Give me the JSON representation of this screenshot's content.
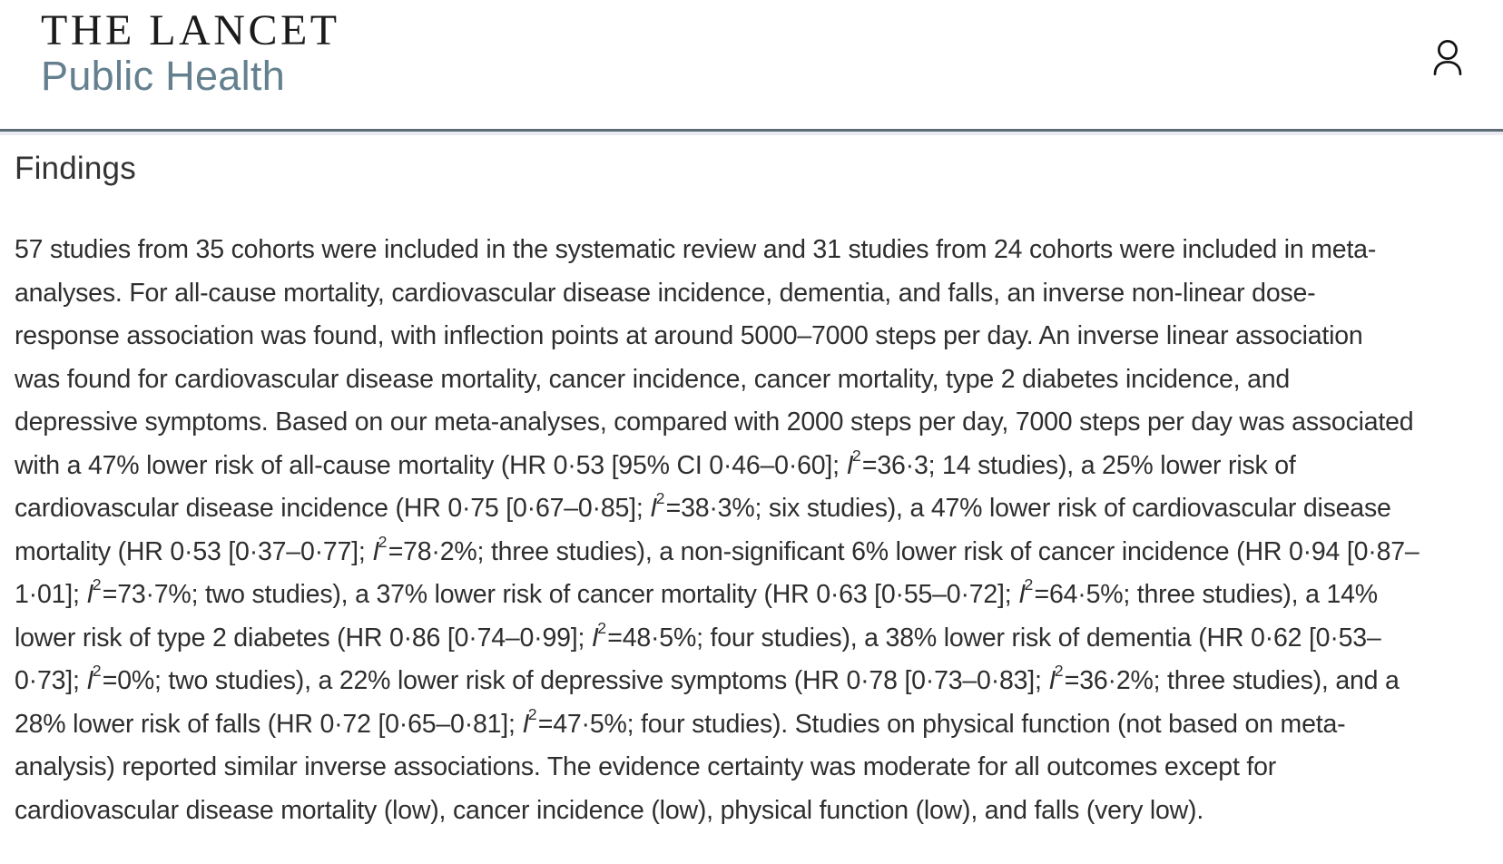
{
  "header": {
    "logo_title": "THE LANCET",
    "logo_subtitle": "Public Health",
    "account_icon": "person-outline"
  },
  "colors": {
    "logo-title-color": "#1b1b1b",
    "logo-subtitle-color": "#64808f",
    "divider-color": "#5c6b75",
    "divider-underline-color": "#e9eaf2",
    "heading-color": "#333333",
    "body-color": "#2e2e2e",
    "page-bg": "#ffffff"
  },
  "article": {
    "section_title": "Findings",
    "paragraph_lines": [
      "57 studies from 35 cohorts were included in the systematic review and 31 studies from 24 cohorts were included in meta-",
      "analyses. For all-cause mortality, cardiovascular disease incidence, dementia, and falls, an inverse non-linear dose-",
      "response association was found, with inflection points at around 5000–7000 steps per day. An inverse linear association",
      "was found for cardiovascular disease mortality, cancer incidence, cancer mortality, type 2 diabetes incidence, and",
      "depressive symptoms. Based on our meta-analyses, compared with 2000 steps per day, 7000 steps per day was associated",
      "with a 47% lower risk of all-cause mortality (HR 0·53 [95% CI 0·46–0·60]; I²=36·3; 14 studies), a 25% lower risk of",
      "cardiovascular disease incidence (HR 0·75 [0·67–0·85]; I²=38·3%; six studies), a 47% lower risk of cardiovascular disease",
      "mortality (HR 0·53 [0·37–0·77]; I²=78·2%; three studies), a non-significant 6% lower risk of cancer incidence (HR 0·94 [0·87–",
      "1·01]; I²=73·7%; two studies), a 37% lower risk of cancer mortality (HR 0·63 [0·55–0·72]; I²=64·5%; three studies), a 14%",
      "lower risk of type 2 diabetes (HR 0·86 [0·74–0·99]; I²=48·5%; four studies), a 38% lower risk of dementia (HR 0·62 [0·53–",
      "0·73]; I²=0%; two studies), a 22% lower risk of depressive symptoms (HR 0·78 [0·73–0·83]; I²=36·2%; three studies), and a",
      "28% lower risk of falls (HR 0·72 [0·65–0·81]; I²=47·5%; four studies). Studies on physical function (not based on meta-",
      "analysis) reported similar inverse associations. The evidence certainty was moderate for all outcomes except for",
      "cardiovascular disease mortality (low), cancer incidence (low), physical function (low), and falls (very low)."
    ]
  }
}
